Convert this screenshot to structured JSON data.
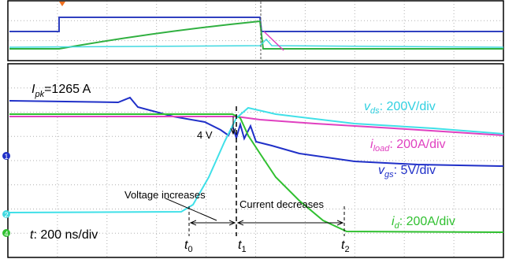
{
  "channel_markers": [
    "1",
    "2",
    "4"
  ],
  "annotations": {
    "peak_current": {
      "symbol": "I",
      "subscript": "pk",
      "text": "=1265 A"
    },
    "vds": {
      "symbol": "v",
      "subscript": "ds",
      "text": ": 200V/div"
    },
    "iload": {
      "symbol": "i",
      "subscript": "load",
      "text": ": 200A/div"
    },
    "vgs": {
      "symbol": "v",
      "subscript": "gs",
      "text": ": 5V/div"
    },
    "id": {
      "symbol": "i",
      "subscript": "d",
      "text": ": 200A/div"
    },
    "timebase": {
      "symbol": "t",
      "text": ": 200 ns/div"
    },
    "plateau": "4 V",
    "voltage_phase": "Voltage increases",
    "current_phase": "Current decreases"
  },
  "time_markers": [
    {
      "symbol": "t",
      "subscript": "0"
    },
    {
      "symbol": "t",
      "subscript": "1"
    },
    {
      "symbol": "t",
      "subscript": "2"
    }
  ]
}
